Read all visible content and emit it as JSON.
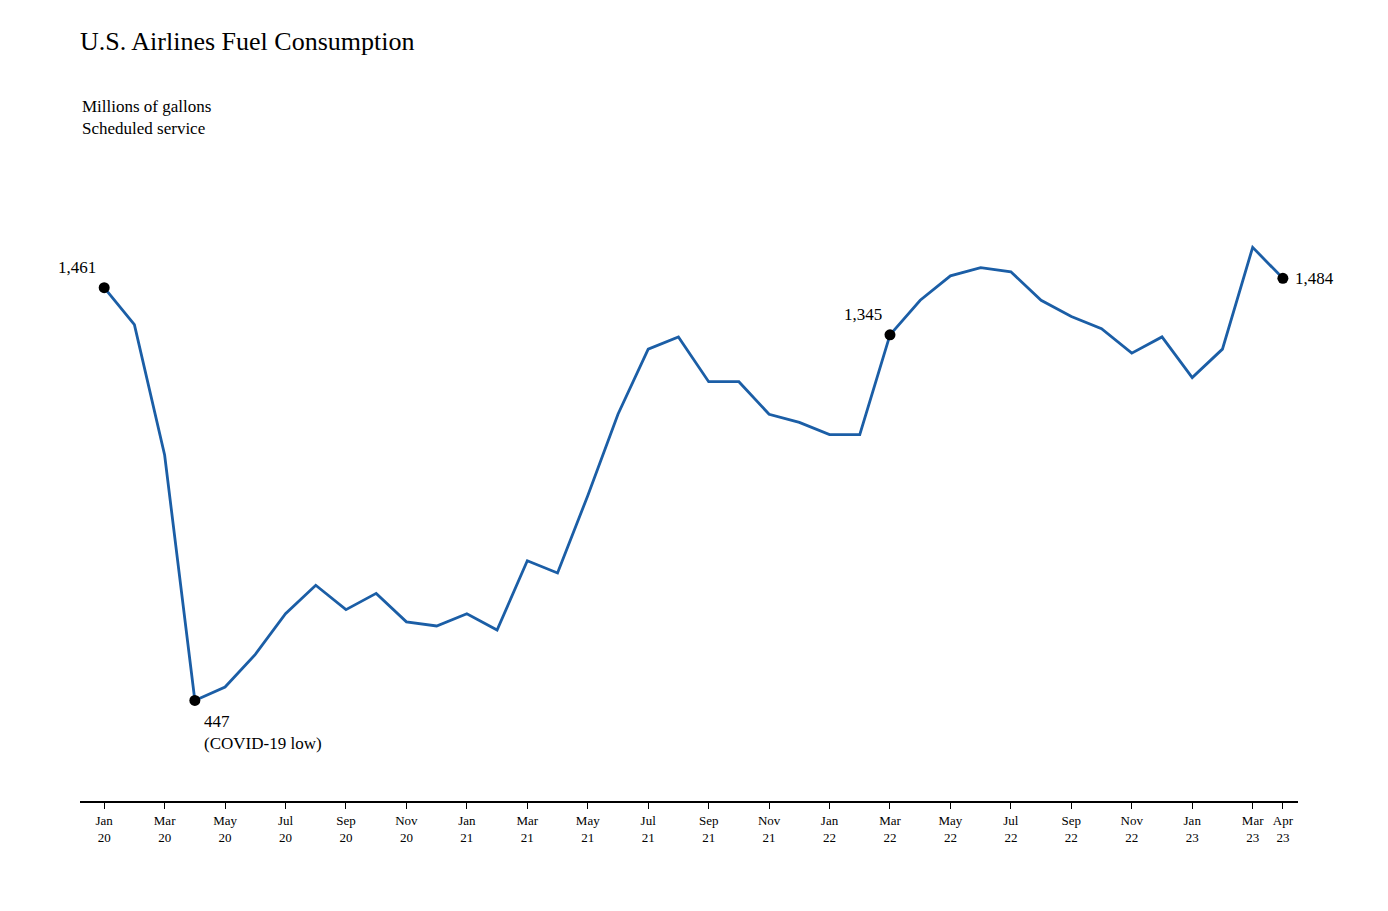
{
  "chart_data": {
    "type": "line",
    "title": "U.S. Airlines Fuel Consumption",
    "subtitle": [
      "Millions of gallons",
      "Scheduled service"
    ],
    "categories": [
      "Jan\n20",
      null,
      "Mar\n20",
      null,
      "May\n20",
      null,
      "Jul\n20",
      null,
      "Sep\n20",
      null,
      "Nov\n20",
      null,
      "Jan\n21",
      null,
      "Mar\n21",
      null,
      "May\n21",
      null,
      "Jul\n21",
      null,
      "Sep\n21",
      null,
      "Nov\n21",
      null,
      "Jan\n22",
      null,
      "Mar\n22",
      null,
      "May\n22",
      null,
      "Jul\n22",
      null,
      "Sep\n22",
      null,
      "Nov\n22",
      null,
      "Jan\n23",
      null,
      "Mar\n23",
      "Apr\n23"
    ],
    "values": [
      1461,
      1370,
      1050,
      447,
      480,
      560,
      660,
      730,
      670,
      710,
      640,
      630,
      660,
      620,
      790,
      760,
      950,
      1150,
      1310,
      1340,
      1230,
      1230,
      1150,
      1130,
      1100,
      1100,
      1345,
      1430,
      1490,
      1510,
      1500,
      1430,
      1390,
      1360,
      1300,
      1340,
      1240,
      1310,
      1560,
      1484
    ],
    "color": "#1b5ea6",
    "ylim": [
      200,
      1750
    ],
    "tick_labels": "x",
    "grid": false,
    "annotations": [
      {
        "index": 0,
        "value": 1461,
        "label": "1,461"
      },
      {
        "index": 3,
        "value": 447,
        "label": "447\n(COVID-19 low)"
      },
      {
        "index": 26,
        "value": 1345,
        "label": "1,345"
      },
      {
        "index": 39,
        "value": 1484,
        "label": "1,484"
      }
    ]
  }
}
